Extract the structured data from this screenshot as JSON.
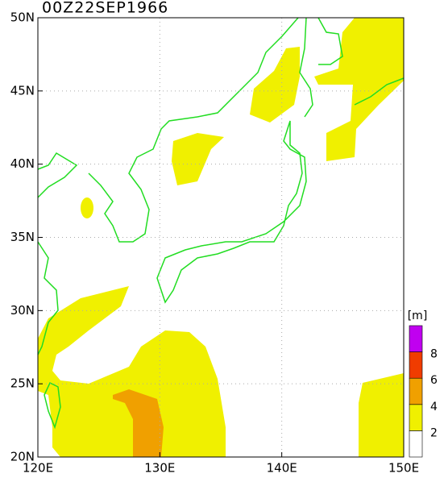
{
  "map": {
    "title": "00Z22SEP1966",
    "lon_labels": [
      "120E",
      "130E",
      "140E",
      "150E"
    ],
    "lat_labels": [
      "50N",
      "45N",
      "40N",
      "35N",
      "30N",
      "25N",
      "20N"
    ],
    "colorbar": {
      "unit": "[m]",
      "levels": [
        2,
        4,
        6,
        8
      ],
      "colors": [
        "#ffffff",
        "#f0f000",
        "#f0a000",
        "#f03c00",
        "#c000f0"
      ]
    }
  }
}
